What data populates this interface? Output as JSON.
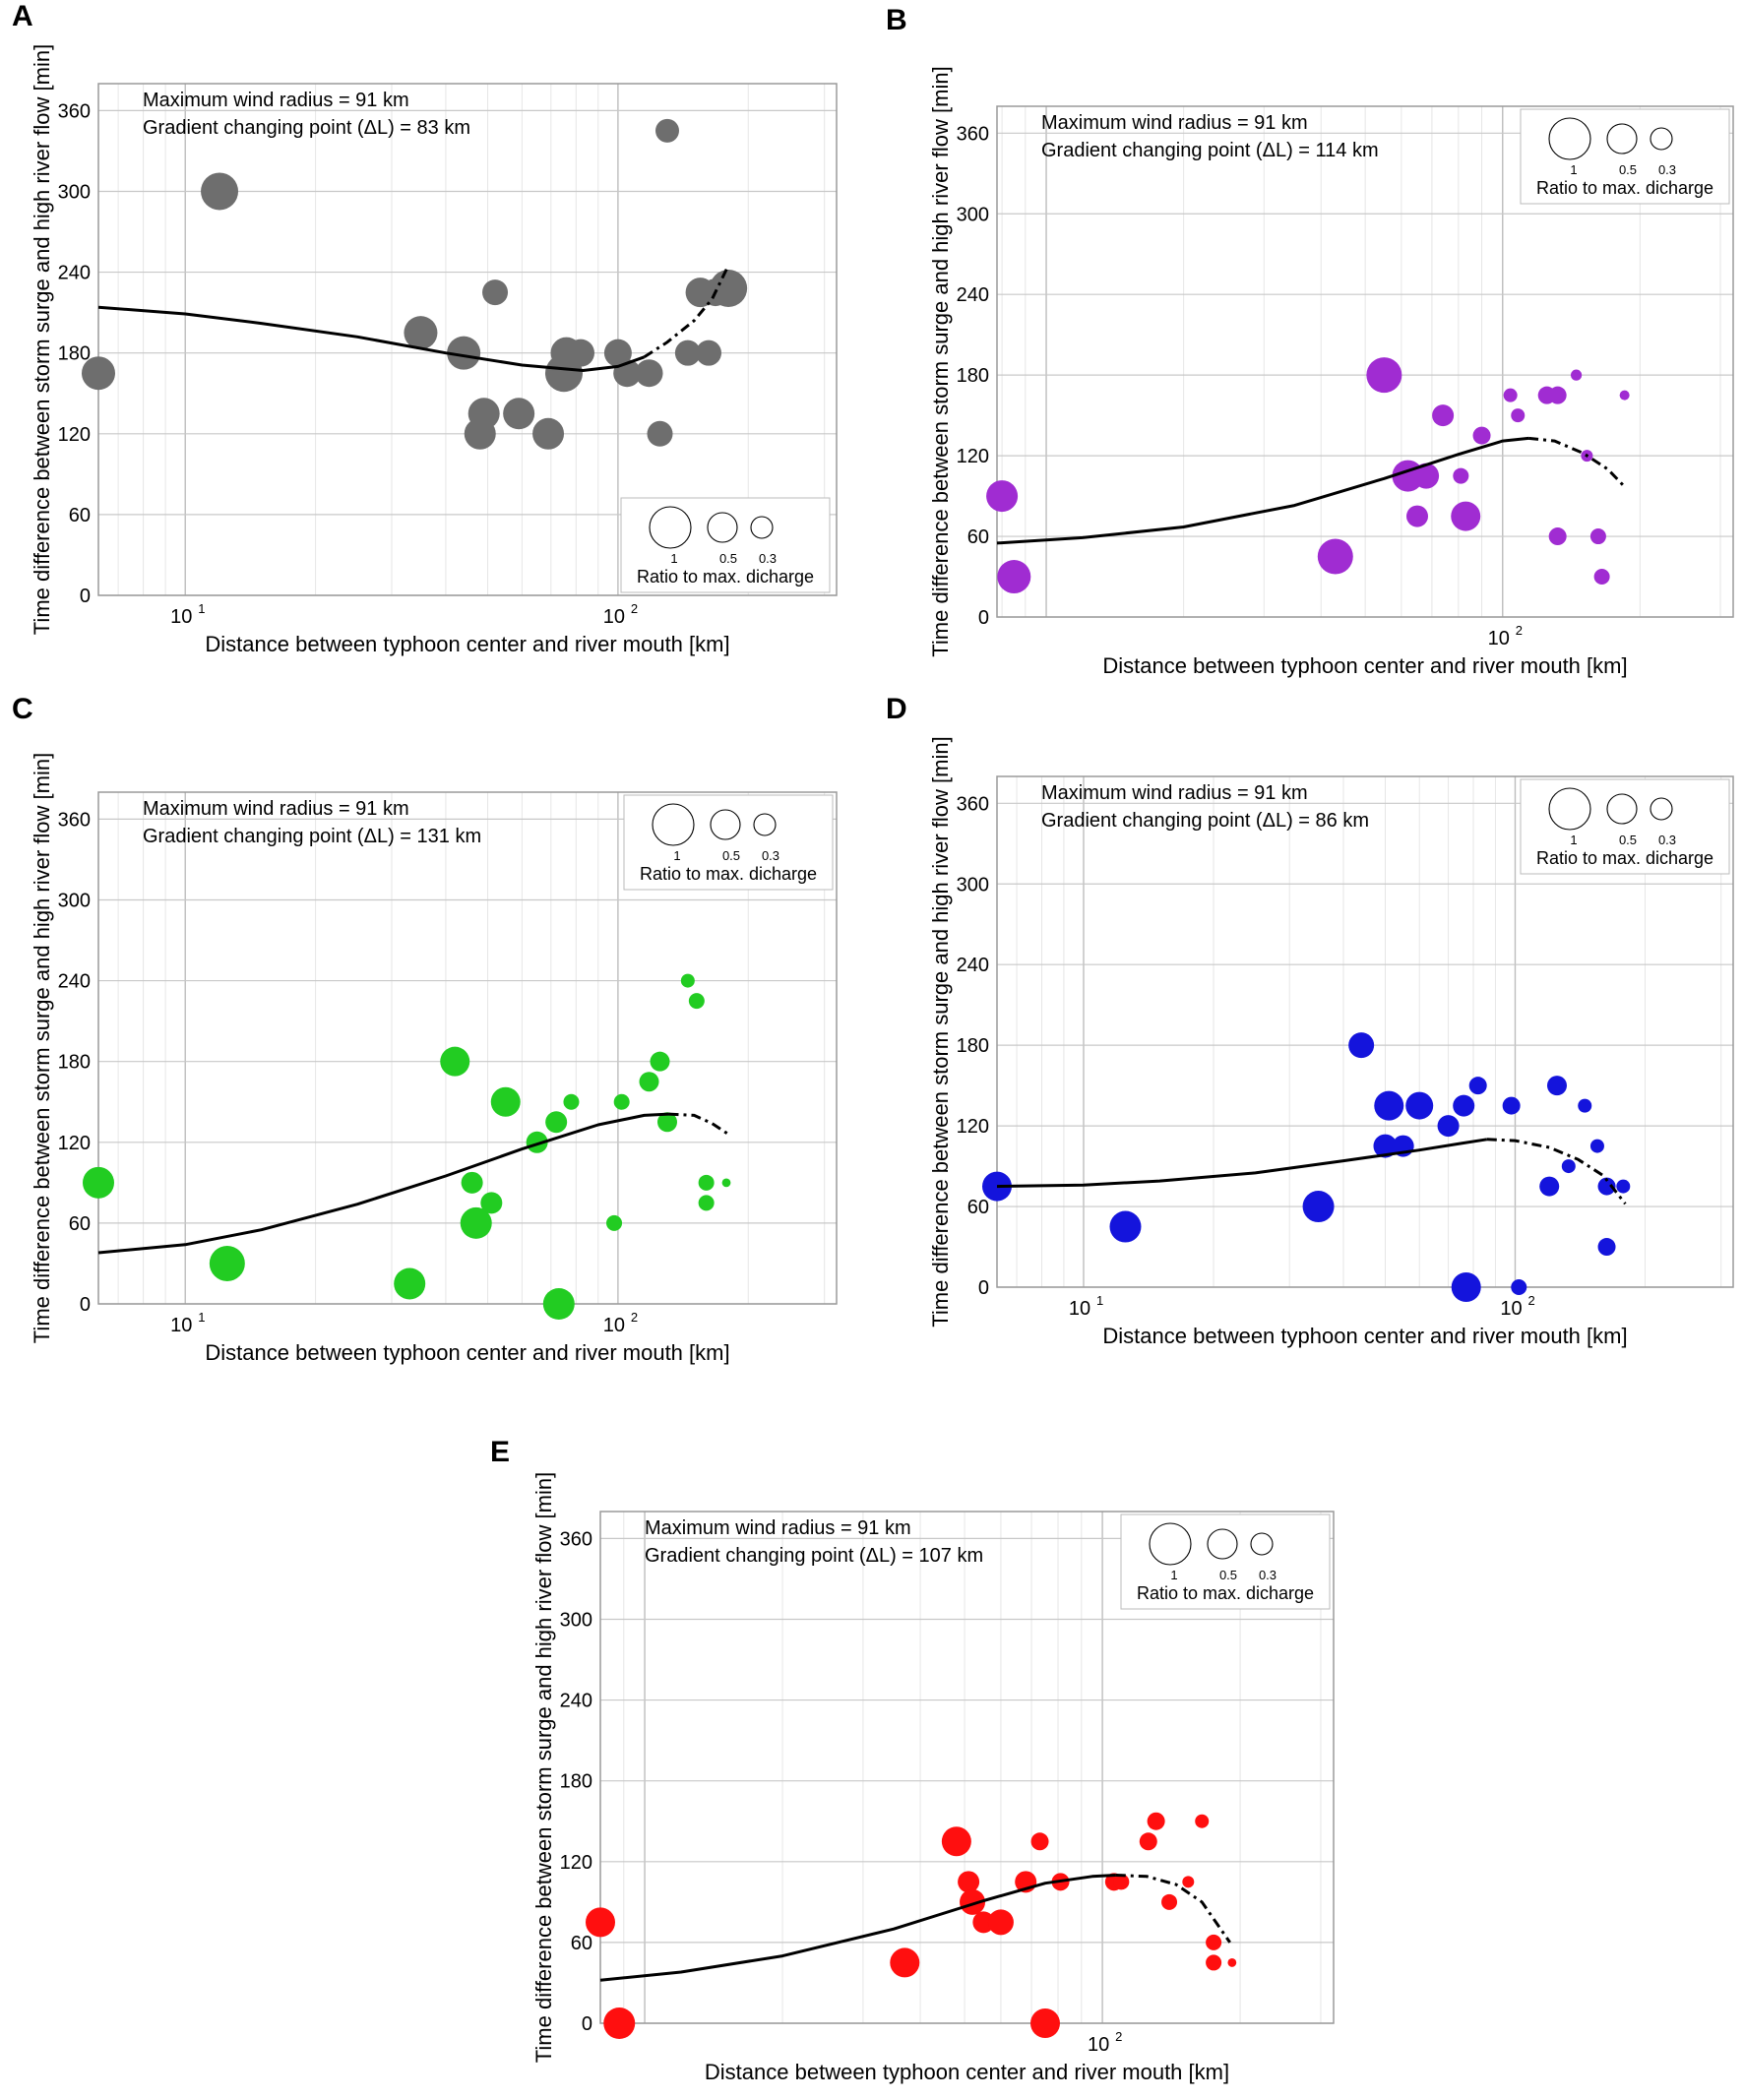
{
  "chart_data": [
    {
      "panel": "A",
      "type": "scatter",
      "title": "",
      "xlabel": "Distance between typhoon center and river mouth [km]",
      "ylabel": "Time difference between storm surge and high river flow [min]",
      "xscale": "log",
      "xlim": [
        6.3,
        320
      ],
      "ylim": [
        0,
        380
      ],
      "yticks": [
        0,
        60,
        120,
        180,
        240,
        300,
        360
      ],
      "xticks": [
        {
          "base": "10",
          "exp": "1"
        },
        {
          "base": "10",
          "exp": "2"
        }
      ],
      "annotations": [
        "Maximum wind radius = 91 km",
        "Gradient changing point (ΔL) = 83 km"
      ],
      "legend": {
        "labels": [
          "1",
          "0.5",
          "0.3"
        ],
        "caption": "Ratio to max. dicharge",
        "position": "bottom-right"
      },
      "color": "#6e6e6e",
      "points": [
        {
          "x": 6.3,
          "y": 165,
          "r": 0.85
        },
        {
          "x": 12,
          "y": 300,
          "r": 0.95
        },
        {
          "x": 35,
          "y": 195,
          "r": 0.85
        },
        {
          "x": 44,
          "y": 180,
          "r": 0.85
        },
        {
          "x": 48,
          "y": 120,
          "r": 0.8
        },
        {
          "x": 49,
          "y": 135,
          "r": 0.8
        },
        {
          "x": 52,
          "y": 225,
          "r": 0.65
        },
        {
          "x": 59,
          "y": 135,
          "r": 0.8
        },
        {
          "x": 69,
          "y": 120,
          "r": 0.8
        },
        {
          "x": 75,
          "y": 165,
          "r": 0.95
        },
        {
          "x": 76,
          "y": 180,
          "r": 0.8
        },
        {
          "x": 82,
          "y": 180,
          "r": 0.7
        },
        {
          "x": 100,
          "y": 180,
          "r": 0.7
        },
        {
          "x": 105,
          "y": 165,
          "r": 0.7
        },
        {
          "x": 118,
          "y": 165,
          "r": 0.7
        },
        {
          "x": 125,
          "y": 120,
          "r": 0.65
        },
        {
          "x": 130,
          "y": 345,
          "r": 0.6
        },
        {
          "x": 145,
          "y": 180,
          "r": 0.65
        },
        {
          "x": 155,
          "y": 225,
          "r": 0.75
        },
        {
          "x": 162,
          "y": 180,
          "r": 0.65
        },
        {
          "x": 168,
          "y": 225,
          "r": 0.7
        },
        {
          "x": 180,
          "y": 228,
          "r": 0.95
        }
      ],
      "curve_solid": [
        [
          6.3,
          214
        ],
        [
          10,
          209
        ],
        [
          15,
          202
        ],
        [
          25,
          192
        ],
        [
          40,
          180
        ],
        [
          60,
          171
        ],
        [
          83,
          167
        ],
        [
          100,
          170
        ],
        [
          115,
          177
        ]
      ],
      "curve_dashed": [
        [
          115,
          177
        ],
        [
          130,
          188
        ],
        [
          150,
          204
        ],
        [
          165,
          220
        ],
        [
          180,
          245
        ]
      ]
    },
    {
      "panel": "B",
      "type": "scatter",
      "title": "",
      "xlabel": "Distance between typhoon center and river mouth [km]",
      "ylabel": "Time difference between storm surge and high river flow [min]",
      "xscale": "log",
      "xlim": [
        7.8,
        320
      ],
      "ylim": [
        0,
        380
      ],
      "yticks": [
        0,
        60,
        120,
        180,
        240,
        300,
        360
      ],
      "xticks": [
        {
          "base": "10",
          "exp": "2"
        }
      ],
      "annotations": [
        "Maximum wind radius = 91 km",
        "Gradient changing point (ΔL) = 114 km"
      ],
      "legend": {
        "labels": [
          "1",
          "0.5",
          "0.3"
        ],
        "caption": "Ratio to max. dicharge",
        "position": "top-right"
      },
      "color": "#a02cd2",
      "points": [
        {
          "x": 8,
          "y": 90,
          "r": 0.8
        },
        {
          "x": 8.5,
          "y": 30,
          "r": 0.85
        },
        {
          "x": 43,
          "y": 45,
          "r": 0.9
        },
        {
          "x": 55,
          "y": 180,
          "r": 0.9
        },
        {
          "x": 62,
          "y": 105,
          "r": 0.8
        },
        {
          "x": 68,
          "y": 105,
          "r": 0.65
        },
        {
          "x": 65,
          "y": 75,
          "r": 0.55
        },
        {
          "x": 74,
          "y": 150,
          "r": 0.55
        },
        {
          "x": 81,
          "y": 105,
          "r": 0.4
        },
        {
          "x": 83,
          "y": 75,
          "r": 0.75
        },
        {
          "x": 90,
          "y": 135,
          "r": 0.45
        },
        {
          "x": 104,
          "y": 165,
          "r": 0.35
        },
        {
          "x": 108,
          "y": 150,
          "r": 0.35
        },
        {
          "x": 125,
          "y": 165,
          "r": 0.45
        },
        {
          "x": 132,
          "y": 165,
          "r": 0.45
        },
        {
          "x": 132,
          "y": 60,
          "r": 0.45
        },
        {
          "x": 145,
          "y": 180,
          "r": 0.28
        },
        {
          "x": 153,
          "y": 120,
          "r": 0.3
        },
        {
          "x": 162,
          "y": 60,
          "r": 0.4
        },
        {
          "x": 165,
          "y": 30,
          "r": 0.4
        },
        {
          "x": 185,
          "y": 165,
          "r": 0.25
        }
      ],
      "curve_solid": [
        [
          7.8,
          55
        ],
        [
          12,
          59
        ],
        [
          20,
          67
        ],
        [
          35,
          83
        ],
        [
          55,
          103
        ],
        [
          80,
          121
        ],
        [
          100,
          131
        ],
        [
          114,
          133
        ]
      ],
      "curve_dashed": [
        [
          114,
          133
        ],
        [
          130,
          131
        ],
        [
          150,
          122
        ],
        [
          170,
          110
        ],
        [
          185,
          97
        ]
      ]
    },
    {
      "panel": "C",
      "type": "scatter",
      "title": "",
      "xlabel": "Distance between typhoon center and river mouth [km]",
      "ylabel": "Time difference between storm surge and high river flow [min]",
      "xscale": "log",
      "xlim": [
        6.3,
        320
      ],
      "ylim": [
        0,
        380
      ],
      "yticks": [
        0,
        60,
        120,
        180,
        240,
        300,
        360
      ],
      "xticks": [
        {
          "base": "10",
          "exp": "1"
        },
        {
          "base": "10",
          "exp": "2"
        }
      ],
      "annotations": [
        "Maximum wind radius = 91 km",
        "Gradient changing point (ΔL) = 131 km"
      ],
      "legend": {
        "labels": [
          "1",
          "0.5",
          "0.3"
        ],
        "caption": "Ratio to max. dicharge",
        "position": "top-right"
      },
      "color": "#22cc22",
      "points": [
        {
          "x": 6.3,
          "y": 90,
          "r": 0.8
        },
        {
          "x": 12.5,
          "y": 30,
          "r": 0.9
        },
        {
          "x": 33,
          "y": 15,
          "r": 0.8
        },
        {
          "x": 42,
          "y": 180,
          "r": 0.75
        },
        {
          "x": 46,
          "y": 90,
          "r": 0.55
        },
        {
          "x": 47,
          "y": 60,
          "r": 0.8
        },
        {
          "x": 51,
          "y": 75,
          "r": 0.55
        },
        {
          "x": 55,
          "y": 150,
          "r": 0.75
        },
        {
          "x": 65,
          "y": 120,
          "r": 0.55
        },
        {
          "x": 72,
          "y": 135,
          "r": 0.55
        },
        {
          "x": 73,
          "y": 0,
          "r": 0.8
        },
        {
          "x": 78,
          "y": 150,
          "r": 0.4
        },
        {
          "x": 98,
          "y": 60,
          "r": 0.4
        },
        {
          "x": 102,
          "y": 150,
          "r": 0.4
        },
        {
          "x": 118,
          "y": 165,
          "r": 0.5
        },
        {
          "x": 125,
          "y": 180,
          "r": 0.5
        },
        {
          "x": 130,
          "y": 135,
          "r": 0.5
        },
        {
          "x": 145,
          "y": 240,
          "r": 0.35
        },
        {
          "x": 152,
          "y": 225,
          "r": 0.4
        },
        {
          "x": 160,
          "y": 90,
          "r": 0.4
        },
        {
          "x": 160,
          "y": 75,
          "r": 0.4
        },
        {
          "x": 178,
          "y": 90,
          "r": 0.22
        }
      ],
      "curve_solid": [
        [
          6.3,
          38
        ],
        [
          10,
          44
        ],
        [
          15,
          55
        ],
        [
          25,
          74
        ],
        [
          40,
          95
        ],
        [
          60,
          115
        ],
        [
          90,
          133
        ],
        [
          115,
          140
        ],
        [
          131,
          141
        ]
      ],
      "curve_dashed": [
        [
          131,
          141
        ],
        [
          150,
          140
        ],
        [
          165,
          134
        ],
        [
          180,
          126
        ]
      ]
    },
    {
      "panel": "D",
      "type": "scatter",
      "title": "",
      "xlabel": "Distance between typhoon center and river mouth [km]",
      "ylabel": "Time difference between storm surge and high river flow [min]",
      "xscale": "log",
      "xlim": [
        6.3,
        320
      ],
      "ylim": [
        0,
        380
      ],
      "yticks": [
        0,
        60,
        120,
        180,
        240,
        300,
        360
      ],
      "xticks": [
        {
          "base": "10",
          "exp": "1"
        },
        {
          "base": "10",
          "exp": "2"
        }
      ],
      "annotations": [
        "Maximum wind radius = 91 km",
        "Gradient changing point (ΔL) = 86 km"
      ],
      "legend": {
        "labels": [
          "1",
          "0.5",
          "0.3"
        ],
        "caption": "Ratio to max. dicharge",
        "position": "top-right"
      },
      "color": "#1414dc",
      "points": [
        {
          "x": 6.3,
          "y": 75,
          "r": 0.75
        },
        {
          "x": 12.5,
          "y": 45,
          "r": 0.8
        },
        {
          "x": 35,
          "y": 60,
          "r": 0.8
        },
        {
          "x": 44,
          "y": 180,
          "r": 0.65
        },
        {
          "x": 50,
          "y": 105,
          "r": 0.6
        },
        {
          "x": 51,
          "y": 135,
          "r": 0.75
        },
        {
          "x": 55,
          "y": 105,
          "r": 0.55
        },
        {
          "x": 60,
          "y": 135,
          "r": 0.7
        },
        {
          "x": 70,
          "y": 120,
          "r": 0.55
        },
        {
          "x": 76,
          "y": 135,
          "r": 0.55
        },
        {
          "x": 77,
          "y": 0,
          "r": 0.75
        },
        {
          "x": 82,
          "y": 150,
          "r": 0.45
        },
        {
          "x": 98,
          "y": 135,
          "r": 0.45
        },
        {
          "x": 102,
          "y": 0,
          "r": 0.4
        },
        {
          "x": 120,
          "y": 75,
          "r": 0.5
        },
        {
          "x": 125,
          "y": 150,
          "r": 0.5
        },
        {
          "x": 133,
          "y": 90,
          "r": 0.35
        },
        {
          "x": 145,
          "y": 135,
          "r": 0.35
        },
        {
          "x": 155,
          "y": 105,
          "r": 0.35
        },
        {
          "x": 163,
          "y": 75,
          "r": 0.45
        },
        {
          "x": 163,
          "y": 30,
          "r": 0.45
        },
        {
          "x": 178,
          "y": 75,
          "r": 0.35
        }
      ],
      "curve_solid": [
        [
          6.3,
          75
        ],
        [
          10,
          76
        ],
        [
          15,
          79
        ],
        [
          25,
          85
        ],
        [
          40,
          94
        ],
        [
          60,
          102
        ],
        [
          75,
          107
        ],
        [
          86,
          110
        ]
      ],
      "curve_dashed": [
        [
          86,
          110
        ],
        [
          100,
          109
        ],
        [
          120,
          104
        ],
        [
          140,
          95
        ],
        [
          160,
          83
        ],
        [
          180,
          62
        ]
      ]
    },
    {
      "panel": "E",
      "type": "scatter",
      "title": "",
      "xlabel": "Distance between typhoon center and river mouth [km]",
      "ylabel": "Time difference between storm surge and high river flow [min]",
      "xscale": "log",
      "xlim": [
        8,
        320
      ],
      "ylim": [
        0,
        380
      ],
      "yticks": [
        0,
        60,
        120,
        180,
        240,
        300,
        360
      ],
      "xticks": [
        {
          "base": "10",
          "exp": "2"
        }
      ],
      "annotations": [
        "Maximum wind radius = 91 km",
        "Gradient changing point (ΔL) = 107 km"
      ],
      "legend": {
        "labels": [
          "1",
          "0.5",
          "0.3"
        ],
        "caption": "Ratio to max. dicharge",
        "position": "top-right"
      },
      "color": "#ff0f0f",
      "points": [
        {
          "x": 8,
          "y": 75,
          "r": 0.75
        },
        {
          "x": 8.8,
          "y": 0,
          "r": 0.8
        },
        {
          "x": 37,
          "y": 45,
          "r": 0.75
        },
        {
          "x": 48,
          "y": 135,
          "r": 0.75
        },
        {
          "x": 51,
          "y": 105,
          "r": 0.55
        },
        {
          "x": 52,
          "y": 90,
          "r": 0.65
        },
        {
          "x": 55,
          "y": 75,
          "r": 0.55
        },
        {
          "x": 60,
          "y": 75,
          "r": 0.65
        },
        {
          "x": 68,
          "y": 105,
          "r": 0.55
        },
        {
          "x": 73,
          "y": 135,
          "r": 0.45
        },
        {
          "x": 75,
          "y": 0,
          "r": 0.75
        },
        {
          "x": 81,
          "y": 105,
          "r": 0.45
        },
        {
          "x": 106,
          "y": 105,
          "r": 0.45
        },
        {
          "x": 110,
          "y": 105,
          "r": 0.4
        },
        {
          "x": 126,
          "y": 135,
          "r": 0.45
        },
        {
          "x": 131,
          "y": 150,
          "r": 0.45
        },
        {
          "x": 140,
          "y": 90,
          "r": 0.4
        },
        {
          "x": 154,
          "y": 105,
          "r": 0.3
        },
        {
          "x": 165,
          "y": 150,
          "r": 0.35
        },
        {
          "x": 175,
          "y": 60,
          "r": 0.4
        },
        {
          "x": 175,
          "y": 45,
          "r": 0.4
        },
        {
          "x": 192,
          "y": 45,
          "r": 0.22
        }
      ],
      "curve_solid": [
        [
          8,
          32
        ],
        [
          12,
          38
        ],
        [
          20,
          50
        ],
        [
          35,
          70
        ],
        [
          55,
          91
        ],
        [
          75,
          104
        ],
        [
          95,
          109
        ],
        [
          107,
          110
        ]
      ],
      "curve_dashed": [
        [
          107,
          110
        ],
        [
          125,
          109
        ],
        [
          145,
          103
        ],
        [
          165,
          90
        ],
        [
          190,
          60
        ]
      ]
    }
  ]
}
